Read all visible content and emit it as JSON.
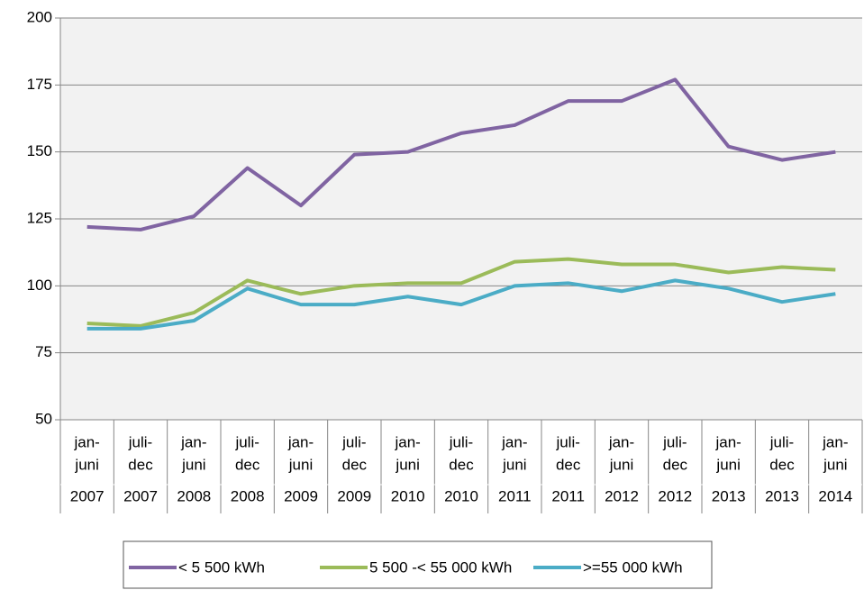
{
  "chart_data": {
    "type": "line",
    "categories": [
      [
        "jan-",
        "juni"
      ],
      [
        "juli-",
        "dec"
      ],
      [
        "jan-",
        "juni"
      ],
      [
        "juli-",
        "dec"
      ],
      [
        "jan-",
        "juni"
      ],
      [
        "juli-",
        "dec"
      ],
      [
        "jan-",
        "juni"
      ],
      [
        "juli-",
        "dec"
      ],
      [
        "jan-",
        "juni"
      ],
      [
        "juli-",
        "dec"
      ],
      [
        "jan-",
        "juni"
      ],
      [
        "juli-",
        "dec"
      ],
      [
        "jan-",
        "juni"
      ],
      [
        "juli-",
        "dec"
      ],
      [
        "jan-",
        "juni"
      ]
    ],
    "years": [
      "2007",
      "2007",
      "2008",
      "2008",
      "2009",
      "2009",
      "2010",
      "2010",
      "2011",
      "2011",
      "2012",
      "2012",
      "2013",
      "2013",
      "2014"
    ],
    "series": [
      {
        "name": "< 5 500 kWh",
        "color": "#8064a2",
        "values": [
          122,
          121,
          126,
          144,
          130,
          149,
          150,
          157,
          160,
          169,
          169,
          177,
          152,
          147,
          150
        ]
      },
      {
        "name": "5 500 -< 55 000 kWh",
        "color": "#9bbb59",
        "values": [
          86,
          85,
          90,
          102,
          97,
          100,
          101,
          101,
          109,
          110,
          108,
          108,
          105,
          107,
          106
        ]
      },
      {
        "name": ">=55 000 kWh",
        "color": "#4bacc6",
        "values": [
          84,
          84,
          87,
          99,
          93,
          93,
          96,
          93,
          100,
          101,
          98,
          102,
          99,
          94,
          97
        ]
      }
    ],
    "ylim": [
      50,
      200
    ],
    "yticks": [
      50,
      75,
      100,
      125,
      150,
      175,
      200
    ],
    "grid": true,
    "legend": "bottom"
  }
}
